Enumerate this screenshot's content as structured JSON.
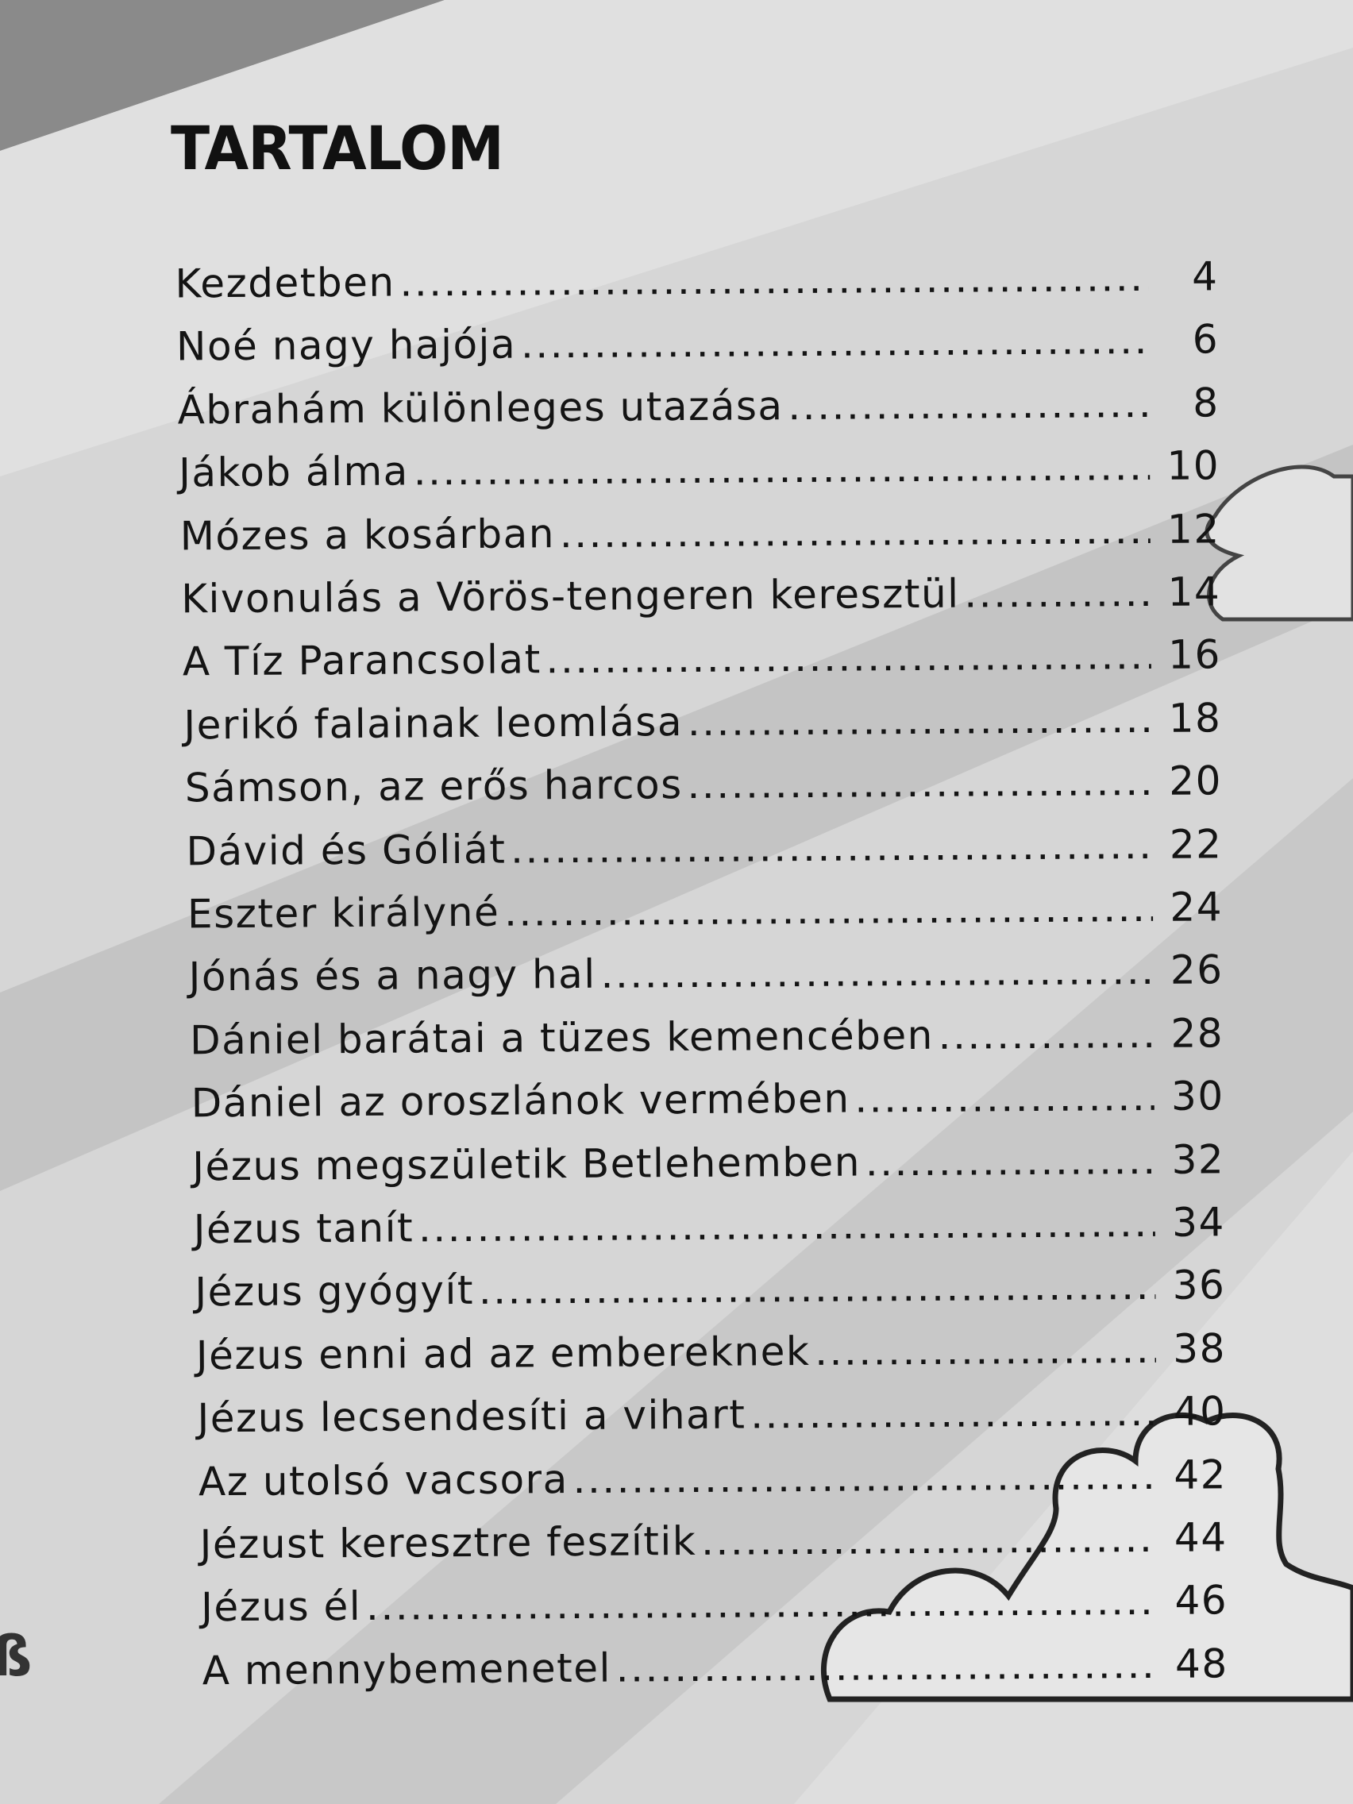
{
  "title": "TARTALOM",
  "entries": [
    {
      "title": "Kezdetben",
      "page": "4"
    },
    {
      "title": "Noé nagy hajója",
      "page": "6"
    },
    {
      "title": "Ábrahám különleges utazása",
      "page": "8"
    },
    {
      "title": "Jákob álma",
      "page": "10"
    },
    {
      "title": "Mózes a kosárban",
      "page": "12"
    },
    {
      "title": "Kivonulás a Vörös-tengeren keresztül",
      "page": "14"
    },
    {
      "title": "A Tíz Parancsolat",
      "page": "16"
    },
    {
      "title": "Jerikó falainak leomlása",
      "page": "18"
    },
    {
      "title": "Sámson, az erős harcos",
      "page": "20"
    },
    {
      "title": "Dávid és Góliát",
      "page": "22"
    },
    {
      "title": "Eszter királyné",
      "page": "24"
    },
    {
      "title": "Jónás és a nagy hal",
      "page": "26"
    },
    {
      "title": "Dániel barátai a tüzes kemencében",
      "page": "28"
    },
    {
      "title": "Dániel az oroszlánok vermében",
      "page": "30"
    },
    {
      "title": "Jézus megszületik Betlehemben",
      "page": "32"
    },
    {
      "title": "Jézus tanít",
      "page": "34"
    },
    {
      "title": "Jézus gyógyít",
      "page": "36"
    },
    {
      "title": "Jézus enni ad az embereknek",
      "page": "38"
    },
    {
      "title": "Jézus lecsendesíti a vihart",
      "page": "40"
    },
    {
      "title": "Az utolsó vacsora",
      "page": "42"
    },
    {
      "title": "Jézust keresztre feszítik",
      "page": "44"
    },
    {
      "title": "Jézus él",
      "page": "46"
    },
    {
      "title": "A mennybemenetel",
      "page": "48"
    }
  ]
}
